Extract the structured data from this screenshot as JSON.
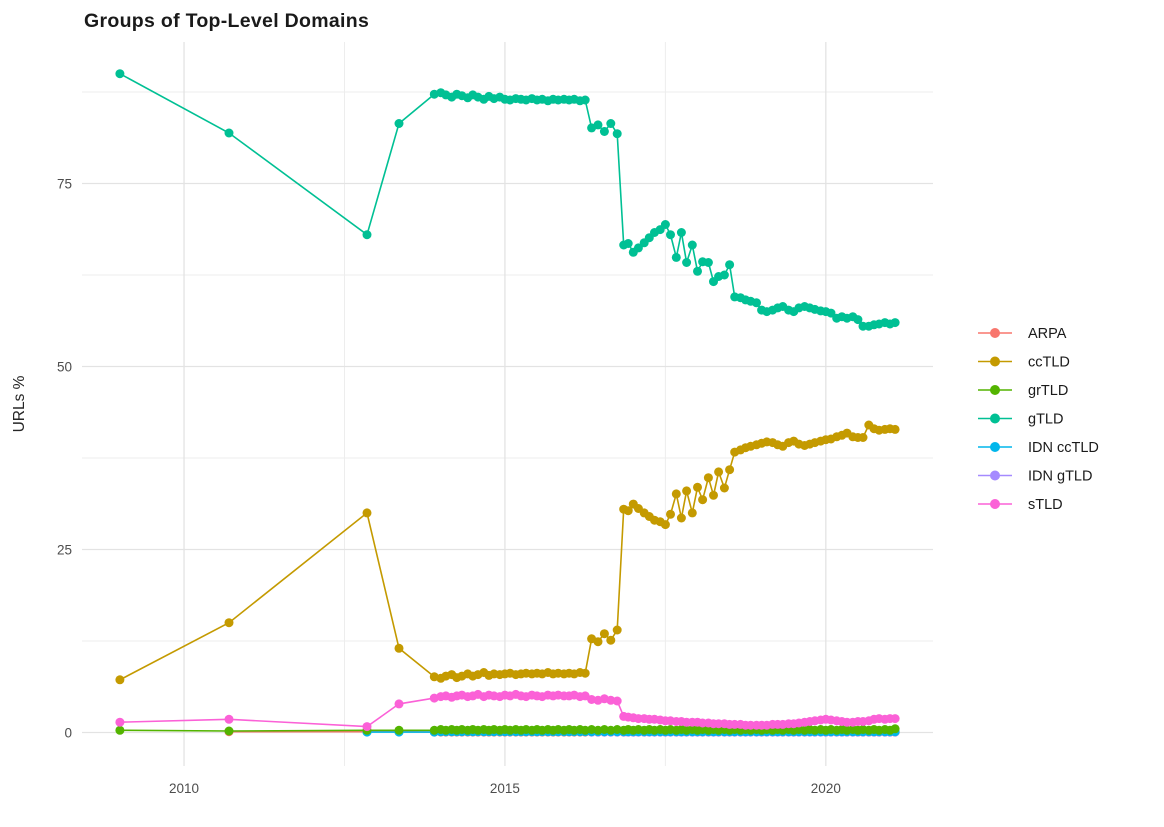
{
  "page": {
    "title": "Groups of Top-Level Domains",
    "background": "#FFFFFF"
  },
  "chart_data": {
    "type": "line",
    "title": "Groups of Top-Level Domains",
    "xlabel": "",
    "ylabel": "URLs %",
    "legend_position": "right",
    "grid": true,
    "xlim": [
      2008.41,
      2021.67
    ],
    "ylim": [
      -4.58,
      94.33
    ],
    "x_grid_major": [
      2010,
      2015,
      2020
    ],
    "x_grid_minor": [
      2012.5,
      2017.5
    ],
    "y_grid_major": [
      0,
      25,
      50,
      75
    ],
    "y_grid_minor": [
      12.5,
      37.5,
      62.5,
      87.5
    ],
    "x_tick_labels": [
      {
        "v": 2010,
        "t": "2010"
      },
      {
        "v": 2015,
        "t": "2015"
      },
      {
        "v": 2020,
        "t": "2020"
      }
    ],
    "y_tick_labels": [
      {
        "v": 0,
        "t": "0"
      },
      {
        "v": 25,
        "t": "25"
      },
      {
        "v": 50,
        "t": "50"
      },
      {
        "v": 75,
        "t": "75"
      }
    ],
    "colors": {
      "grid_major": "#E3E3E3",
      "grid_minor": "#EDEDED",
      "tick_text": "#4D4D4D",
      "title_text": "#1A1A1A"
    },
    "x": [
      2009,
      2010.7,
      2012.85,
      2013.35,
      2013.9,
      2014,
      2014.08,
      2014.17,
      2014.25,
      2014.33,
      2014.42,
      2014.5,
      2014.58,
      2014.67,
      2014.75,
      2014.83,
      2014.92,
      2015,
      2015.08,
      2015.17,
      2015.25,
      2015.33,
      2015.42,
      2015.5,
      2015.58,
      2015.67,
      2015.75,
      2015.83,
      2015.92,
      2016,
      2016.08,
      2016.17,
      2016.25,
      2016.35,
      2016.45,
      2016.55,
      2016.65,
      2016.75,
      2016.85,
      2016.92,
      2017,
      2017.08,
      2017.17,
      2017.25,
      2017.33,
      2017.42,
      2017.5,
      2017.58,
      2017.67,
      2017.75,
      2017.83,
      2017.92,
      2018,
      2018.08,
      2018.17,
      2018.25,
      2018.33,
      2018.42,
      2018.5,
      2018.58,
      2018.67,
      2018.75,
      2018.83,
      2018.92,
      2019,
      2019.08,
      2019.17,
      2019.25,
      2019.33,
      2019.42,
      2019.5,
      2019.58,
      2019.67,
      2019.75,
      2019.83,
      2019.92,
      2020,
      2020.08,
      2020.17,
      2020.25,
      2020.33,
      2020.42,
      2020.5,
      2020.58,
      2020.67,
      2020.75,
      2020.83,
      2020.92,
      2021,
      2021.08
    ],
    "draw_order": [
      "ARPA",
      "IDN gTLD",
      "IDN ccTLD",
      "grTLD",
      "gTLD",
      "ccTLD",
      "sTLD"
    ],
    "series": [
      {
        "name": "ARPA",
        "color": "#F8766D",
        "x_offset": 1,
        "y": [
          0.1,
          0.1,
          0.1,
          0.05,
          0.05,
          0.05,
          0.05,
          0.05,
          0.05,
          0.05,
          0.05,
          0.05,
          0.05,
          0.05,
          0.05,
          0.05,
          0.05,
          0.05,
          0.05,
          0.05,
          0.05,
          0.05,
          0.05,
          0.05,
          0.05,
          0.05,
          0.05,
          0.05,
          0.05,
          0.05,
          0.05,
          0.05,
          0.05,
          0.05,
          0.05,
          0.05,
          0.05,
          0.05,
          0.05,
          0.05,
          0.05,
          0.05,
          0.05,
          0.05,
          0.05,
          0.05,
          0.05,
          0.05,
          0.05,
          0.05,
          0.05,
          0.05,
          0.05,
          0.05,
          0.05,
          0.05,
          0.05,
          0.05,
          0.05,
          0.05,
          0.05,
          0.05,
          0.05,
          0.05,
          0.05,
          0.05,
          0.05,
          0.05,
          0.05,
          0.05,
          0.05,
          0.05,
          0.05,
          0.05,
          0.05,
          0.05,
          0.05,
          0.05,
          0.05,
          0.05,
          0.05,
          0.05,
          0.05,
          0.05,
          0.05,
          0.05,
          0.05,
          0.05,
          0.05
        ]
      },
      {
        "name": "ccTLD",
        "color": "#C49A00",
        "x_offset": 0,
        "y": [
          7.2,
          15,
          30,
          11.5,
          7.6,
          7.4,
          7.7,
          7.9,
          7.5,
          7.7,
          8,
          7.7,
          7.9,
          8.2,
          7.8,
          8,
          7.9,
          8,
          8.1,
          7.9,
          8,
          8.1,
          8,
          8.1,
          8,
          8.2,
          8,
          8.1,
          8,
          8.1,
          8,
          8.2,
          8.1,
          12.8,
          12.4,
          13.5,
          12.6,
          14,
          30.5,
          30.3,
          31.2,
          30.6,
          30,
          29.5,
          29,
          28.8,
          28.4,
          29.8,
          32.6,
          29.3,
          33,
          30,
          33.5,
          31.8,
          34.8,
          32.4,
          35.6,
          33.4,
          35.9,
          38.3,
          38.6,
          38.9,
          39.1,
          39.3,
          39.5,
          39.7,
          39.6,
          39.3,
          39.1,
          39.6,
          39.8,
          39.4,
          39.2,
          39.4,
          39.6,
          39.8,
          40,
          40.1,
          40.4,
          40.6,
          40.9,
          40.4,
          40.3,
          40.3,
          42,
          41.5,
          41.3,
          41.4,
          41.5,
          41.4
        ]
      },
      {
        "name": "grTLD",
        "color": "#53B400",
        "x_offset": 0,
        "y": [
          0.3,
          0.2,
          0.3,
          0.3,
          0.3,
          0.4,
          0.3,
          0.4,
          0.3,
          0.4,
          0.3,
          0.4,
          0.3,
          0.4,
          0.3,
          0.4,
          0.3,
          0.4,
          0.3,
          0.4,
          0.3,
          0.4,
          0.3,
          0.4,
          0.3,
          0.4,
          0.3,
          0.4,
          0.3,
          0.4,
          0.3,
          0.4,
          0.3,
          0.4,
          0.3,
          0.4,
          0.3,
          0.4,
          0.3,
          0.4,
          0.3,
          0.4,
          0.3,
          0.4,
          0.3,
          0.4,
          0.3,
          0.4,
          0.3,
          0.4,
          0.3,
          0.4,
          0.3,
          0.4,
          0.3,
          0.4,
          0.3,
          0.4,
          0.3,
          0.4,
          0.3,
          0.4,
          0.3,
          0.4,
          0.3,
          0.4,
          0.3,
          0.4,
          0.3,
          0.4,
          0.3,
          0.4,
          0.3,
          0.4,
          0.3,
          0.4,
          0.3,
          0.4,
          0.3,
          0.4,
          0.3,
          0.4,
          0.3,
          0.4,
          0.3,
          0.4,
          0.3,
          0.4,
          0.3,
          0.5
        ]
      },
      {
        "name": "gTLD",
        "color": "#00C094",
        "x_offset": 0,
        "y": [
          90,
          81.9,
          68,
          83.2,
          87.2,
          87.4,
          87.1,
          86.8,
          87.2,
          87,
          86.7,
          87.1,
          86.8,
          86.5,
          86.9,
          86.6,
          86.8,
          86.5,
          86.4,
          86.6,
          86.5,
          86.4,
          86.6,
          86.4,
          86.5,
          86.3,
          86.5,
          86.4,
          86.5,
          86.4,
          86.5,
          86.3,
          86.4,
          82.6,
          83,
          82.1,
          83.2,
          81.8,
          66.6,
          66.8,
          65.6,
          66.2,
          66.9,
          67.6,
          68.3,
          68.7,
          69.4,
          68,
          64.9,
          68.3,
          64.2,
          66.6,
          63,
          64.3,
          64.2,
          61.6,
          62.3,
          62.5,
          63.9,
          59.5,
          59.4,
          59.1,
          58.9,
          58.7,
          57.7,
          57.5,
          57.7,
          58,
          58.2,
          57.7,
          57.5,
          58,
          58.2,
          58,
          57.8,
          57.6,
          57.5,
          57.3,
          56.6,
          56.8,
          56.6,
          56.8,
          56.4,
          55.5,
          55.5,
          55.7,
          55.8,
          56,
          55.8,
          56
        ]
      },
      {
        "name": "IDN ccTLD",
        "color": "#00B6EB",
        "x_offset": 2,
        "y": [
          0.05,
          0.05,
          0.05,
          0.1,
          0.1,
          0.1,
          0.1,
          0.1,
          0.1,
          0.1,
          0.1,
          0.1,
          0.1,
          0.1,
          0.1,
          0.1,
          0.1,
          0.1,
          0.1,
          0.1,
          0.1,
          0.1,
          0.1,
          0.1,
          0.1,
          0.1,
          0.1,
          0.1,
          0.1,
          0.1,
          0.1,
          0.1,
          0.1,
          0.1,
          0.1,
          0.1,
          0.1,
          0.1,
          0.1,
          0.1,
          0.1,
          0.1,
          0.1,
          0.1,
          0.1,
          0.1,
          0.1,
          0.1,
          0.1,
          0.1,
          0.1,
          0.1,
          0.1,
          0.1,
          0.1,
          0.1,
          0.1,
          0.1,
          0.1,
          0.1,
          0.1,
          0.1,
          0.1,
          0.1,
          0.1,
          0.1,
          0.1,
          0.1,
          0.1,
          0.1,
          0.1,
          0.1,
          0.1,
          0.1,
          0.1,
          0.1,
          0.1,
          0.1,
          0.1,
          0.1,
          0.1,
          0.1,
          0.1,
          0.1,
          0.1,
          0.1,
          0.1,
          0.1
        ]
      },
      {
        "name": "IDN gTLD",
        "color": "#A58AFF",
        "x_offset": 33,
        "y": [
          0.05,
          0.05,
          0.05,
          0.05,
          0.05,
          0.05,
          0.05,
          0.05,
          0.05,
          0.05,
          0.05,
          0.05,
          0.05,
          0.05,
          0.05,
          0.05,
          0.05,
          0.05,
          0.05,
          0.05,
          0.05,
          0.05,
          0.05,
          0.05,
          0.05,
          0.05,
          0.05,
          0.05,
          0.05,
          0.05,
          0.05,
          0.05,
          0.05,
          0.05,
          0.05,
          0.05,
          0.05,
          0.05,
          0.05,
          0.05,
          0.05,
          0.05,
          0.05,
          0.05,
          0.05,
          0.05,
          0.05,
          0.05,
          0.05,
          0.05,
          0.05,
          0.05,
          0.05,
          0.05,
          0.05,
          0.05,
          0.05
        ]
      },
      {
        "name": "sTLD",
        "color": "#FB61D7",
        "x_offset": 0,
        "y": [
          1.4,
          1.8,
          0.8,
          3.9,
          4.7,
          4.9,
          5,
          4.8,
          5,
          5.1,
          4.9,
          5,
          5.2,
          4.9,
          5.1,
          5,
          4.9,
          5.1,
          5,
          5.2,
          5,
          4.9,
          5.1,
          5,
          4.9,
          5.1,
          5,
          5.1,
          5,
          5,
          5.1,
          4.9,
          5,
          4.5,
          4.4,
          4.6,
          4.4,
          4.3,
          2.2,
          2.1,
          2,
          1.9,
          1.9,
          1.8,
          1.8,
          1.7,
          1.6,
          1.6,
          1.5,
          1.5,
          1.4,
          1.4,
          1.4,
          1.3,
          1.3,
          1.2,
          1.2,
          1.2,
          1.1,
          1.1,
          1.1,
          1,
          1,
          1,
          1,
          1,
          1.1,
          1.1,
          1.1,
          1.2,
          1.2,
          1.3,
          1.4,
          1.5,
          1.6,
          1.7,
          1.8,
          1.7,
          1.6,
          1.5,
          1.4,
          1.4,
          1.5,
          1.5,
          1.6,
          1.8,
          1.9,
          1.8,
          1.9,
          1.9
        ]
      }
    ]
  }
}
